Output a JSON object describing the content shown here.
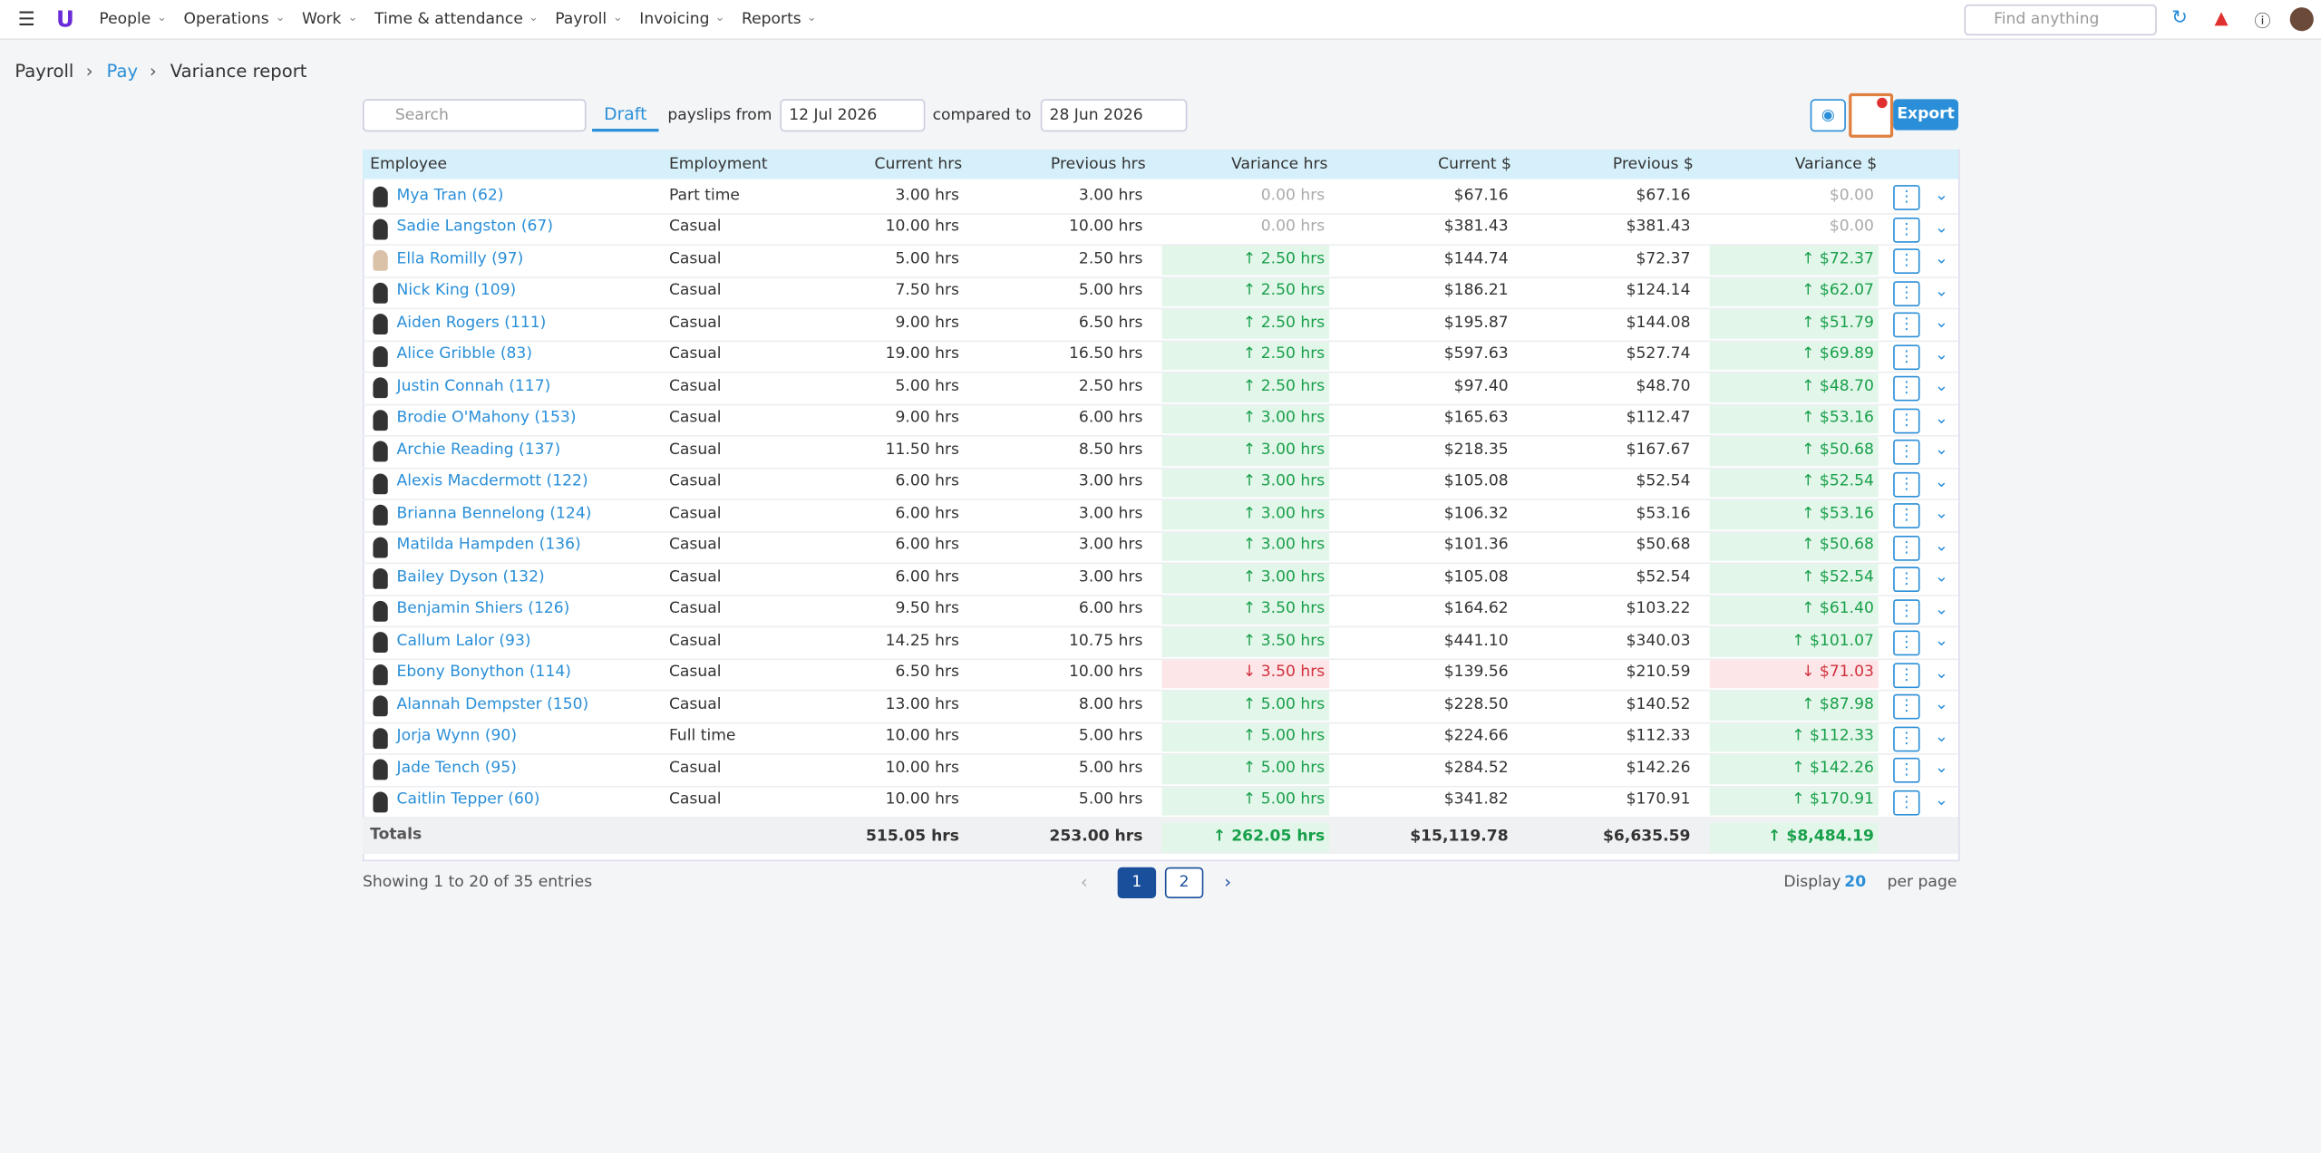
{
  "nav": {
    "menu": [
      "People",
      "Operations",
      "Work",
      "Time & attendance",
      "Payroll",
      "Invoicing",
      "Reports"
    ],
    "search": "Find anything"
  },
  "breadcrumb": [
    "Payroll",
    "Pay",
    "Variance report"
  ],
  "toolbar": {
    "search": "Search",
    "status": "Draft",
    "from_label": "payslips from",
    "from_date": "12 Jul 2026",
    "compare_label": "compared to",
    "compare_date": "28 Jun 2026",
    "export": "Export"
  },
  "table": {
    "columns": [
      "Employee",
      "Employment",
      "Current hrs",
      "Previous hrs",
      "Variance hrs",
      "Current $",
      "Previous $",
      "Variance $"
    ],
    "rows": [
      [
        "Mya Tran (62)",
        "Part time",
        "3.00 hrs",
        "3.00 hrs",
        "0.00 hrs",
        "$67.16",
        "$67.16",
        "$0.00"
      ],
      [
        "Sadie Langston (67)",
        "Casual",
        "10.00 hrs",
        "10.00 hrs",
        "0.00 hrs",
        "$381.43",
        "$381.43",
        "$0.00"
      ],
      [
        "Ella Romilly (97)",
        "Casual",
        "5.00 hrs",
        "2.50 hrs",
        "2.50 hrs",
        "$144.74",
        "$72.37",
        "$72.37"
      ],
      [
        "Nick King (109)",
        "Casual",
        "7.50 hrs",
        "5.00 hrs",
        "2.50 hrs",
        "$186.21",
        "$124.14",
        "$62.07"
      ],
      [
        "Aiden Rogers (111)",
        "Casual",
        "9.00 hrs",
        "6.50 hrs",
        "2.50 hrs",
        "$195.87",
        "$144.08",
        "$51.79"
      ],
      [
        "Alice Gribble (83)",
        "Casual",
        "19.00 hrs",
        "16.50 hrs",
        "2.50 hrs",
        "$597.63",
        "$527.74",
        "$69.89"
      ],
      [
        "Justin Connah (117)",
        "Casual",
        "5.00 hrs",
        "2.50 hrs",
        "2.50 hrs",
        "$97.40",
        "$48.70",
        "$48.70"
      ],
      [
        "Brodie O'Mahony (153)",
        "Casual",
        "9.00 hrs",
        "6.00 hrs",
        "3.00 hrs",
        "$165.63",
        "$112.47",
        "$53.16"
      ],
      [
        "Archie Reading (137)",
        "Casual",
        "11.50 hrs",
        "8.50 hrs",
        "3.00 hrs",
        "$218.35",
        "$167.67",
        "$50.68"
      ],
      [
        "Alexis Macdermott (122)",
        "Casual",
        "6.00 hrs",
        "3.00 hrs",
        "3.00 hrs",
        "$105.08",
        "$52.54",
        "$52.54"
      ],
      [
        "Brianna Bennelong (124)",
        "Casual",
        "6.00 hrs",
        "3.00 hrs",
        "3.00 hrs",
        "$106.32",
        "$53.16",
        "$53.16"
      ],
      [
        "Matilda Hampden (136)",
        "Casual",
        "6.00 hrs",
        "3.00 hrs",
        "3.00 hrs",
        "$101.36",
        "$50.68",
        "$50.68"
      ],
      [
        "Bailey Dyson (132)",
        "Casual",
        "6.00 hrs",
        "3.00 hrs",
        "3.00 hrs",
        "$105.08",
        "$52.54",
        "$52.54"
      ],
      [
        "Benjamin Shiers (126)",
        "Casual",
        "9.50 hrs",
        "6.00 hrs",
        "3.50 hrs",
        "$164.62",
        "$103.22",
        "$61.40"
      ],
      [
        "Callum Lalor (93)",
        "Casual",
        "14.25 hrs",
        "10.75 hrs",
        "3.50 hrs",
        "$441.10",
        "$340.03",
        "$101.07"
      ],
      [
        "Ebony Bonython (114)",
        "Casual",
        "6.50 hrs",
        "10.00 hrs",
        "3.50 hrs",
        "$139.56",
        "$210.59",
        "$71.03"
      ],
      [
        "Alannah Dempster (150)",
        "Casual",
        "13.00 hrs",
        "8.00 hrs",
        "5.00 hrs",
        "$228.50",
        "$140.52",
        "$87.98"
      ],
      [
        "Jorja Wynn (90)",
        "Full time",
        "10.00 hrs",
        "5.00 hrs",
        "5.00 hrs",
        "$224.66",
        "$112.33",
        "$112.33"
      ],
      [
        "Jade Tench (95)",
        "Casual",
        "10.00 hrs",
        "5.00 hrs",
        "5.00 hrs",
        "$284.52",
        "$142.26",
        "$142.26"
      ],
      [
        "Caitlin Tepper (60)",
        "Casual",
        "10.00 hrs",
        "5.00 hrs",
        "5.00 hrs",
        "$341.82",
        "$170.91",
        "$170.91"
      ]
    ],
    "totals": [
      "Totals",
      "",
      "515.05 hrs",
      "253.00 hrs",
      "262.05 hrs",
      "$15,119.78",
      "$6,635.59",
      "$8,484.19"
    ]
  },
  "footer": {
    "entries": "Showing 1 to 20 of 35 entries",
    "pages": [
      "1",
      "2"
    ],
    "display": "Display",
    "per_page_value": "20",
    "per_page": "per page"
  }
}
